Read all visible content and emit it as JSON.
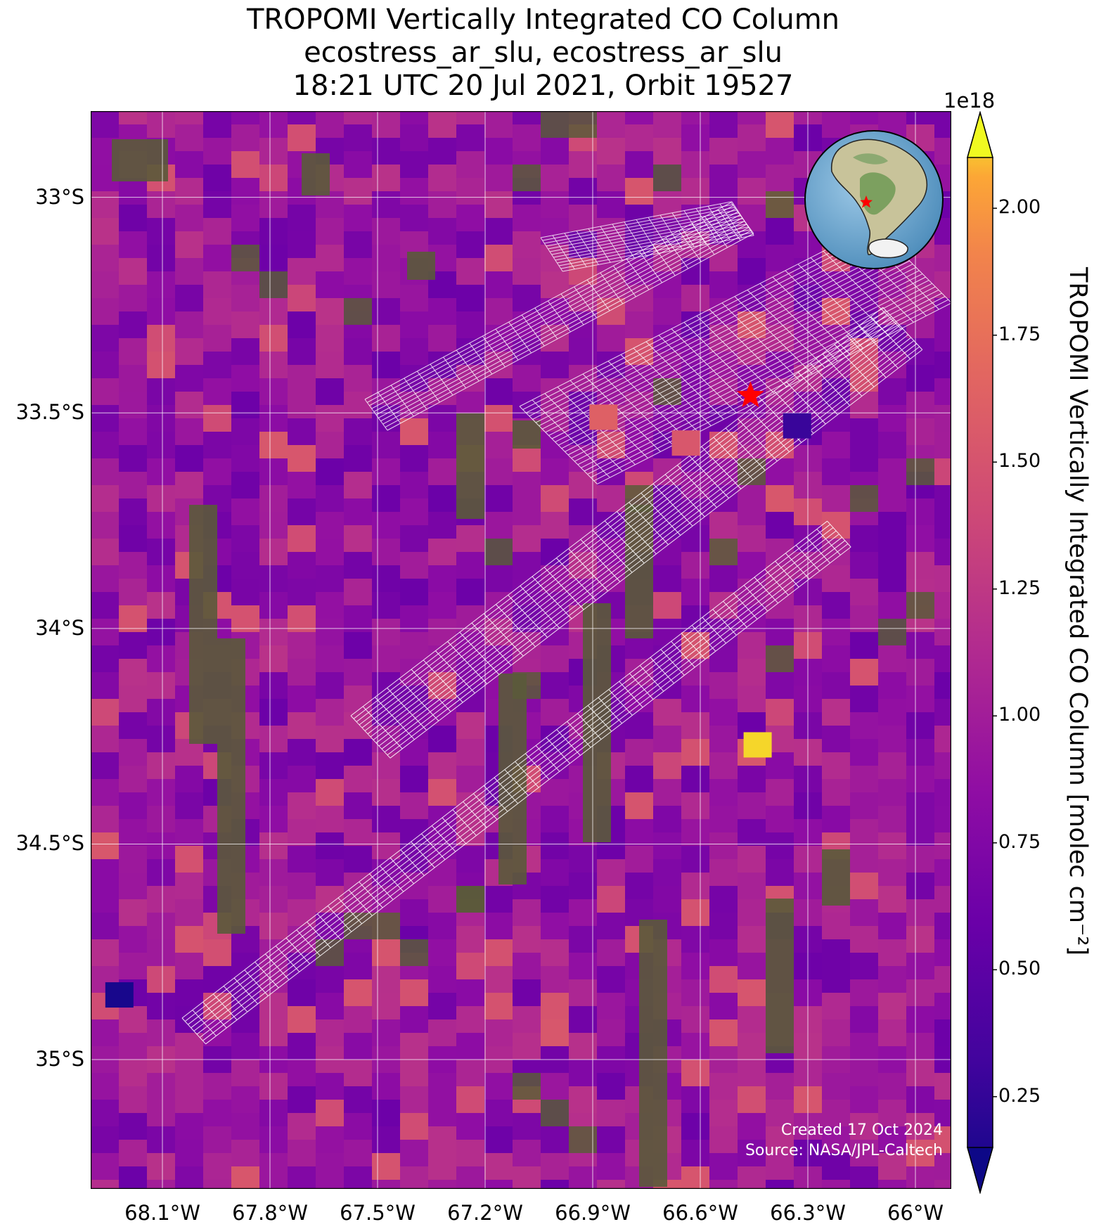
{
  "title": {
    "line1": "TROPOMI Vertically Integrated CO Column",
    "line2": "ecostress_ar_slu, ecostress_ar_slu",
    "line3": "18:21 UTC 20 Jul 2021, Orbit 19527"
  },
  "map": {
    "lat_ticks": [
      "33°S",
      "33.5°S",
      "34°S",
      "34.5°S",
      "35°S"
    ],
    "lon_ticks": [
      "68.1°W",
      "67.8°W",
      "67.5°W",
      "67.2°W",
      "66.9°W",
      "66.6°W",
      "66.3°W",
      "66°W"
    ],
    "lon_range": [
      -68.3,
      -65.9
    ],
    "lat_range": [
      -35.3,
      -32.8
    ],
    "target_site": {
      "lon": -66.46,
      "lat": -33.46
    },
    "highlight_values": [
      2.05,
      0.35,
      1.58,
      1.5
    ],
    "credit_line1": "Created 17 Oct 2024",
    "credit_line2": "Source: NASA/JPL-Caltech",
    "inset": {
      "description_icon": "globe-inset-icon",
      "marker_color": "#ff0000"
    }
  },
  "colorbar": {
    "exponent": "1e18",
    "ticks": [
      "0.25",
      "0.50",
      "0.75",
      "1.00",
      "1.25",
      "1.50",
      "1.75",
      "2.00"
    ],
    "label": "TROPOMI Vertically Integrated CO Column [molec cm⁻²]",
    "range": [
      0.15,
      2.1
    ],
    "colormap": "plasma"
  },
  "colors": {
    "grid": "#ffffff",
    "footprint_outline": "#ffffff",
    "marker": "#ff0000",
    "vegetation": "#5a5a3a"
  }
}
